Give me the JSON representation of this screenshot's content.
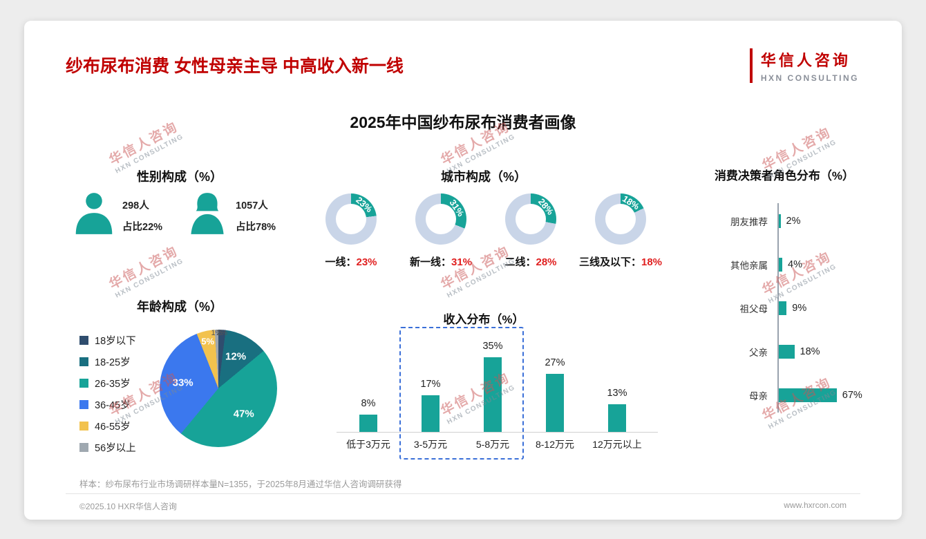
{
  "page": {
    "header_title": "纱布尿布消费 女性母亲主导 中高收入新一线",
    "logo_cn": "华信人咨询",
    "logo_en": "HXN CONSULTING",
    "main_title": "2025年中国纱布尿布消费者画像",
    "sample_note": "样本：纱布尿布行业市场调研样本量N=1355，于2025年8月通过华信人咨询调研获得",
    "footer_left": "©2025.10 HXR华信人咨询",
    "footer_right": "www.hxrcon.com",
    "watermark_cn": "华信人咨询",
    "watermark_en": "HXN CONSULTING"
  },
  "colors": {
    "accent_teal": "#17A398",
    "title_red": "#C00000",
    "value_red": "#E01F1F",
    "donut_rest": "#C9D5E8",
    "highlight_border": "#3A6FD8",
    "pie_colors": [
      "#2F4D6E",
      "#196F80",
      "#17A398",
      "#3B78EE",
      "#F2C24E",
      "#9FA8B0"
    ]
  },
  "chart_data": [
    {
      "id": "gender",
      "type": "pictogram",
      "title": "性别构成（%）",
      "items": [
        {
          "gender": "male",
          "count": "298人",
          "share": "占比22%"
        },
        {
          "gender": "female",
          "count": "1057人",
          "share": "占比78%"
        }
      ]
    },
    {
      "id": "city",
      "type": "pie",
      "subtype": "donut-row",
      "title": "城市构成（%）",
      "categories": [
        "一线",
        "新一线",
        "二线",
        "三线及以下"
      ],
      "values": [
        23,
        31,
        28,
        18
      ]
    },
    {
      "id": "decision",
      "type": "bar",
      "orientation": "horizontal",
      "title": "消费决策者角色分布（%）",
      "categories": [
        "朋友推荐",
        "其他亲属",
        "祖父母",
        "父亲",
        "母亲"
      ],
      "values": [
        2,
        4,
        9,
        18,
        67
      ],
      "xlim": [
        0,
        70
      ]
    },
    {
      "id": "age",
      "type": "pie",
      "title": "年龄构成（%）",
      "categories": [
        "18岁以下",
        "18-25岁",
        "26-35岁",
        "36-45岁",
        "46-55岁",
        "56岁以上"
      ],
      "values": [
        2,
        12,
        47,
        33,
        5,
        1
      ]
    },
    {
      "id": "income",
      "type": "bar",
      "orientation": "vertical",
      "title": "收入分布（%）",
      "categories": [
        "低于3万元",
        "3-5万元",
        "5-8万元",
        "8-12万元",
        "12万元以上"
      ],
      "values": [
        8,
        17,
        35,
        27,
        13
      ],
      "ylim": [
        0,
        40
      ],
      "highlight_categories": [
        "3-5万元",
        "5-8万元"
      ]
    }
  ]
}
